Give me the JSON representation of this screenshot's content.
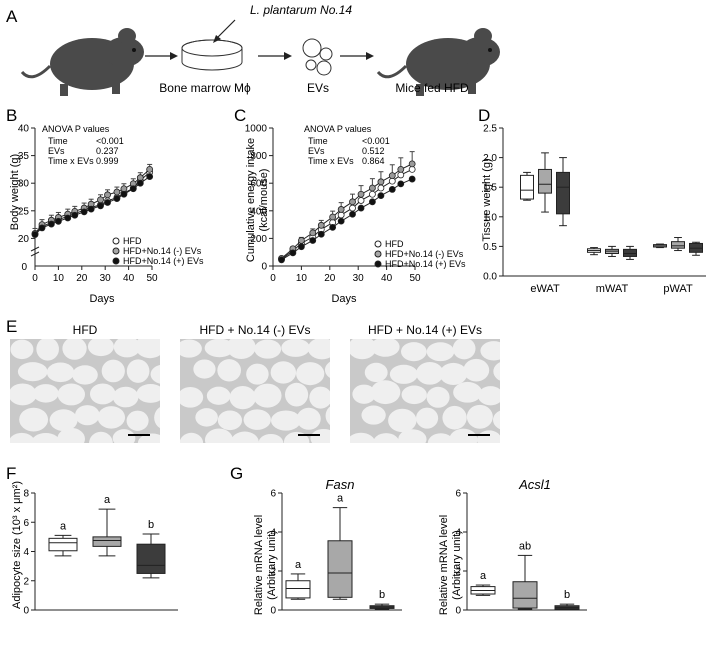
{
  "panel_letters": [
    "A",
    "B",
    "C",
    "D",
    "E",
    "F",
    "G"
  ],
  "schematic": {
    "strain_label": "L. plantarum No.14",
    "step_labels": [
      "Bone marrow Mϕ",
      "EVs",
      "Mice fed HFD"
    ]
  },
  "histology": {
    "titles": [
      "HFD",
      "HFD + No.14 (-) EVs",
      "HFD + No.14 (+) EVs"
    ]
  },
  "colors": {
    "hfd": "#ffffff",
    "minus": "#a8a8a8",
    "plus": "#3c3c3c",
    "tissue": "#c9c9c9",
    "membrane": "#efefef"
  },
  "chart_data": [
    {
      "panel": "B",
      "type": "line",
      "title": "",
      "xlabel": "Days",
      "ylabel": "Body weight (g)",
      "xlim": [
        0,
        50
      ],
      "ylim": [
        15,
        40
      ],
      "y_break": true,
      "xticks": [
        0,
        10,
        20,
        30,
        40,
        50
      ],
      "yticks": [
        20,
        25,
        30,
        35,
        40
      ],
      "anova": {
        "title": "ANOVA P values",
        "rows": [
          {
            "term": "Time",
            "p": "<0.001"
          },
          {
            "term": "EVs",
            "p": "0.237"
          },
          {
            "term": "Time x EVs",
            "p": "0.999"
          }
        ]
      },
      "legend": [
        "HFD",
        "HFD+No.14 (-) EVs",
        "HFD+No.14 (+) EVs"
      ],
      "x": [
        0,
        3,
        7,
        10,
        14,
        17,
        21,
        24,
        28,
        31,
        35,
        38,
        42,
        45,
        49
      ],
      "series": [
        {
          "name": "HFD",
          "values": [
            20.8,
            22.1,
            22.9,
            23.4,
            24.0,
            24.5,
            25.1,
            25.6,
            26.1,
            26.8,
            27.4,
            28.2,
            29.1,
            30.5,
            32.0
          ]
        },
        {
          "name": "HFD+No.14 (-) EVs",
          "values": [
            20.9,
            22.5,
            23.3,
            23.8,
            24.4,
            24.9,
            25.5,
            26.2,
            27.0,
            27.9,
            28.4,
            29.0,
            29.9,
            31.0,
            32.5
          ]
        },
        {
          "name": "HFD+No.14 (+) EVs",
          "values": [
            20.7,
            21.9,
            22.6,
            23.1,
            23.7,
            24.2,
            24.8,
            25.3,
            25.9,
            26.5,
            27.2,
            28.0,
            29.0,
            30.0,
            31.2
          ]
        }
      ]
    },
    {
      "panel": "C",
      "type": "line",
      "xlabel": "Days",
      "ylabel": "Cumulative energy intake (kcal/mouse)",
      "xlim": [
        0,
        50
      ],
      "ylim": [
        0,
        1000
      ],
      "xticks": [
        0,
        10,
        20,
        30,
        40,
        50
      ],
      "yticks": [
        0,
        200,
        400,
        600,
        800,
        1000
      ],
      "anova": {
        "title": "ANOVA P values",
        "rows": [
          {
            "term": "Time",
            "p": "<0.001"
          },
          {
            "term": "EVs",
            "p": "0.512"
          },
          {
            "term": "Time x EVs",
            "p": "0.864"
          }
        ]
      },
      "legend": [
        "HFD",
        "HFD+No.14 (-) EVs",
        "HFD+No.14 (+) EVs"
      ],
      "x": [
        3,
        7,
        10,
        14,
        17,
        21,
        24,
        28,
        31,
        35,
        38,
        42,
        45,
        49
      ],
      "series": [
        {
          "name": "HFD",
          "values": [
            50,
            110,
            165,
            210,
            265,
            315,
            370,
            420,
            475,
            520,
            565,
            615,
            660,
            700
          ]
        },
        {
          "name": "HFD+No.14 (-) EVs",
          "values": [
            55,
            125,
            185,
            240,
            295,
            355,
            410,
            465,
            520,
            565,
            610,
            655,
            700,
            740
          ]
        },
        {
          "name": "HFD+No.14 (+) EVs",
          "values": [
            45,
            95,
            140,
            185,
            230,
            280,
            325,
            375,
            420,
            465,
            510,
            555,
            595,
            630
          ]
        }
      ]
    },
    {
      "panel": "D",
      "type": "box",
      "ylabel": "Tissue weight (g)",
      "ylim": [
        0,
        2.5
      ],
      "yticks": [
        0.0,
        0.5,
        1.0,
        1.5,
        2.0,
        2.5
      ],
      "categories": [
        "eWAT",
        "mWAT",
        "pWAT"
      ],
      "groups": [
        "HFD",
        "HFD+No.14 (-) EVs",
        "HFD+No.14 (+) EVs"
      ],
      "boxes": [
        [
          {
            "min": 1.28,
            "q1": 1.3,
            "med": 1.45,
            "q3": 1.7,
            "max": 1.75
          },
          {
            "min": 1.08,
            "q1": 1.4,
            "med": 1.55,
            "q3": 1.8,
            "max": 2.08
          },
          {
            "min": 0.85,
            "q1": 1.05,
            "med": 1.5,
            "q3": 1.75,
            "max": 2.0
          }
        ],
        [
          {
            "min": 0.36,
            "q1": 0.4,
            "med": 0.43,
            "q3": 0.46,
            "max": 0.48
          },
          {
            "min": 0.33,
            "q1": 0.38,
            "med": 0.42,
            "q3": 0.45,
            "max": 0.5
          },
          {
            "min": 0.28,
            "q1": 0.33,
            "med": 0.38,
            "q3": 0.45,
            "max": 0.5
          }
        ],
        [
          {
            "min": 0.48,
            "q1": 0.49,
            "med": 0.51,
            "q3": 0.53,
            "max": 0.54
          },
          {
            "min": 0.43,
            "q1": 0.47,
            "med": 0.51,
            "q3": 0.58,
            "max": 0.65
          },
          {
            "min": 0.35,
            "q1": 0.4,
            "med": 0.47,
            "q3": 0.55,
            "max": 0.57
          }
        ]
      ]
    },
    {
      "panel": "F",
      "type": "box",
      "ylabel": "Adipocyte size (10³ x μm²)",
      "ylim": [
        0,
        8
      ],
      "yticks": [
        0,
        2,
        4,
        6,
        8
      ],
      "groups": [
        "HFD",
        "HFD+No.14 (-) EVs",
        "HFD+No.14 (+) EVs"
      ],
      "letters": [
        "a",
        "a",
        "b"
      ],
      "boxes": [
        {
          "min": 3.7,
          "q1": 4.05,
          "med": 4.6,
          "q3": 4.9,
          "max": 5.1
        },
        {
          "min": 3.7,
          "q1": 4.35,
          "med": 4.75,
          "q3": 5.0,
          "max": 6.9
        },
        {
          "min": 2.2,
          "q1": 2.5,
          "med": 3.05,
          "q3": 4.5,
          "max": 5.2
        }
      ]
    },
    {
      "panel": "G",
      "type": "box",
      "gene": "Fasn",
      "ylabel": "Relative mRNA level",
      "ylabel2": "(Arbitrary unit)",
      "ylim": [
        0,
        6
      ],
      "yticks": [
        0,
        2,
        4,
        6
      ],
      "groups": [
        "HFD",
        "HFD+No.14 (-) EVs",
        "HFD+No.14 (+) EVs"
      ],
      "letters": [
        "a",
        "a",
        "b"
      ],
      "boxes": [
        {
          "min": 0.55,
          "q1": 0.62,
          "med": 1.1,
          "q3": 1.5,
          "max": 1.85
        },
        {
          "min": 0.55,
          "q1": 0.65,
          "med": 1.9,
          "q3": 3.55,
          "max": 5.25
        },
        {
          "min": 0.05,
          "q1": 0.08,
          "med": 0.15,
          "q3": 0.22,
          "max": 0.3
        }
      ]
    },
    {
      "panel": "G",
      "type": "box",
      "gene": "Acsl1",
      "ylabel": "Relative mRNA level",
      "ylabel2": "(Arbitrary unit)",
      "ylim": [
        0,
        6
      ],
      "yticks": [
        0,
        2,
        4,
        6
      ],
      "groups": [
        "HFD",
        "HFD+No.14 (-) EVs",
        "HFD+No.14 (+) EVs"
      ],
      "letters": [
        "a",
        "ab",
        "b"
      ],
      "boxes": [
        {
          "min": 0.75,
          "q1": 0.82,
          "med": 1.0,
          "q3": 1.2,
          "max": 1.28
        },
        {
          "min": 0.05,
          "q1": 0.1,
          "med": 0.6,
          "q3": 1.45,
          "max": 2.8
        },
        {
          "min": 0.02,
          "q1": 0.05,
          "med": 0.12,
          "q3": 0.22,
          "max": 0.3
        }
      ]
    }
  ]
}
